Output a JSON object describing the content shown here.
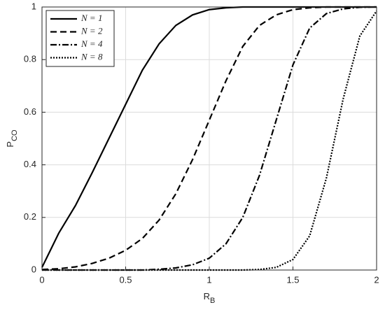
{
  "chart_data": {
    "type": "line",
    "xlabel": {
      "text": "R",
      "subscript": "B"
    },
    "ylabel": {
      "text": "P",
      "subscript": "CO"
    },
    "x": [
      0,
      0.1,
      0.2,
      0.3,
      0.4,
      0.5,
      0.6,
      0.7,
      0.8,
      0.9,
      1.0,
      1.1,
      1.2,
      1.3,
      1.4,
      1.5,
      1.6,
      1.7,
      1.8,
      1.9,
      2.0
    ],
    "series": [
      {
        "name": "N = 1",
        "color": "#000000",
        "dash": "solid",
        "values": [
          0.01,
          0.14,
          0.245,
          0.37,
          0.5,
          0.63,
          0.76,
          0.86,
          0.93,
          0.97,
          0.99,
          0.997,
          1,
          1,
          1,
          1,
          1,
          1,
          1,
          1,
          1
        ]
      },
      {
        "name": "N = 2",
        "color": "#000000",
        "dash": "dashed",
        "values": [
          0.002,
          0.005,
          0.012,
          0.025,
          0.045,
          0.075,
          0.12,
          0.19,
          0.29,
          0.42,
          0.57,
          0.72,
          0.85,
          0.93,
          0.97,
          0.99,
          0.997,
          1,
          1,
          1,
          1
        ]
      },
      {
        "name": "N = 4",
        "color": "#000000",
        "dash": "dashdot",
        "values": [
          0,
          0,
          0,
          0,
          0,
          0,
          0,
          0.003,
          0.008,
          0.02,
          0.045,
          0.1,
          0.2,
          0.36,
          0.57,
          0.78,
          0.92,
          0.975,
          0.993,
          0.999,
          1
        ]
      },
      {
        "name": "N = 8",
        "color": "#000000",
        "dash": "dotted",
        "values": [
          0,
          0,
          0,
          0,
          0,
          0,
          0,
          0,
          0,
          0,
          0,
          0,
          0,
          0.002,
          0.01,
          0.04,
          0.13,
          0.35,
          0.65,
          0.89,
          0.985
        ]
      }
    ],
    "xlim": [
      0,
      2
    ],
    "xticks": [
      0,
      0.5,
      1,
      1.5,
      2
    ],
    "ylim": [
      0,
      1
    ],
    "yticks": [
      0,
      0.2,
      0.4,
      0.6,
      0.8,
      1
    ],
    "grid": true,
    "legend": "upper left"
  }
}
